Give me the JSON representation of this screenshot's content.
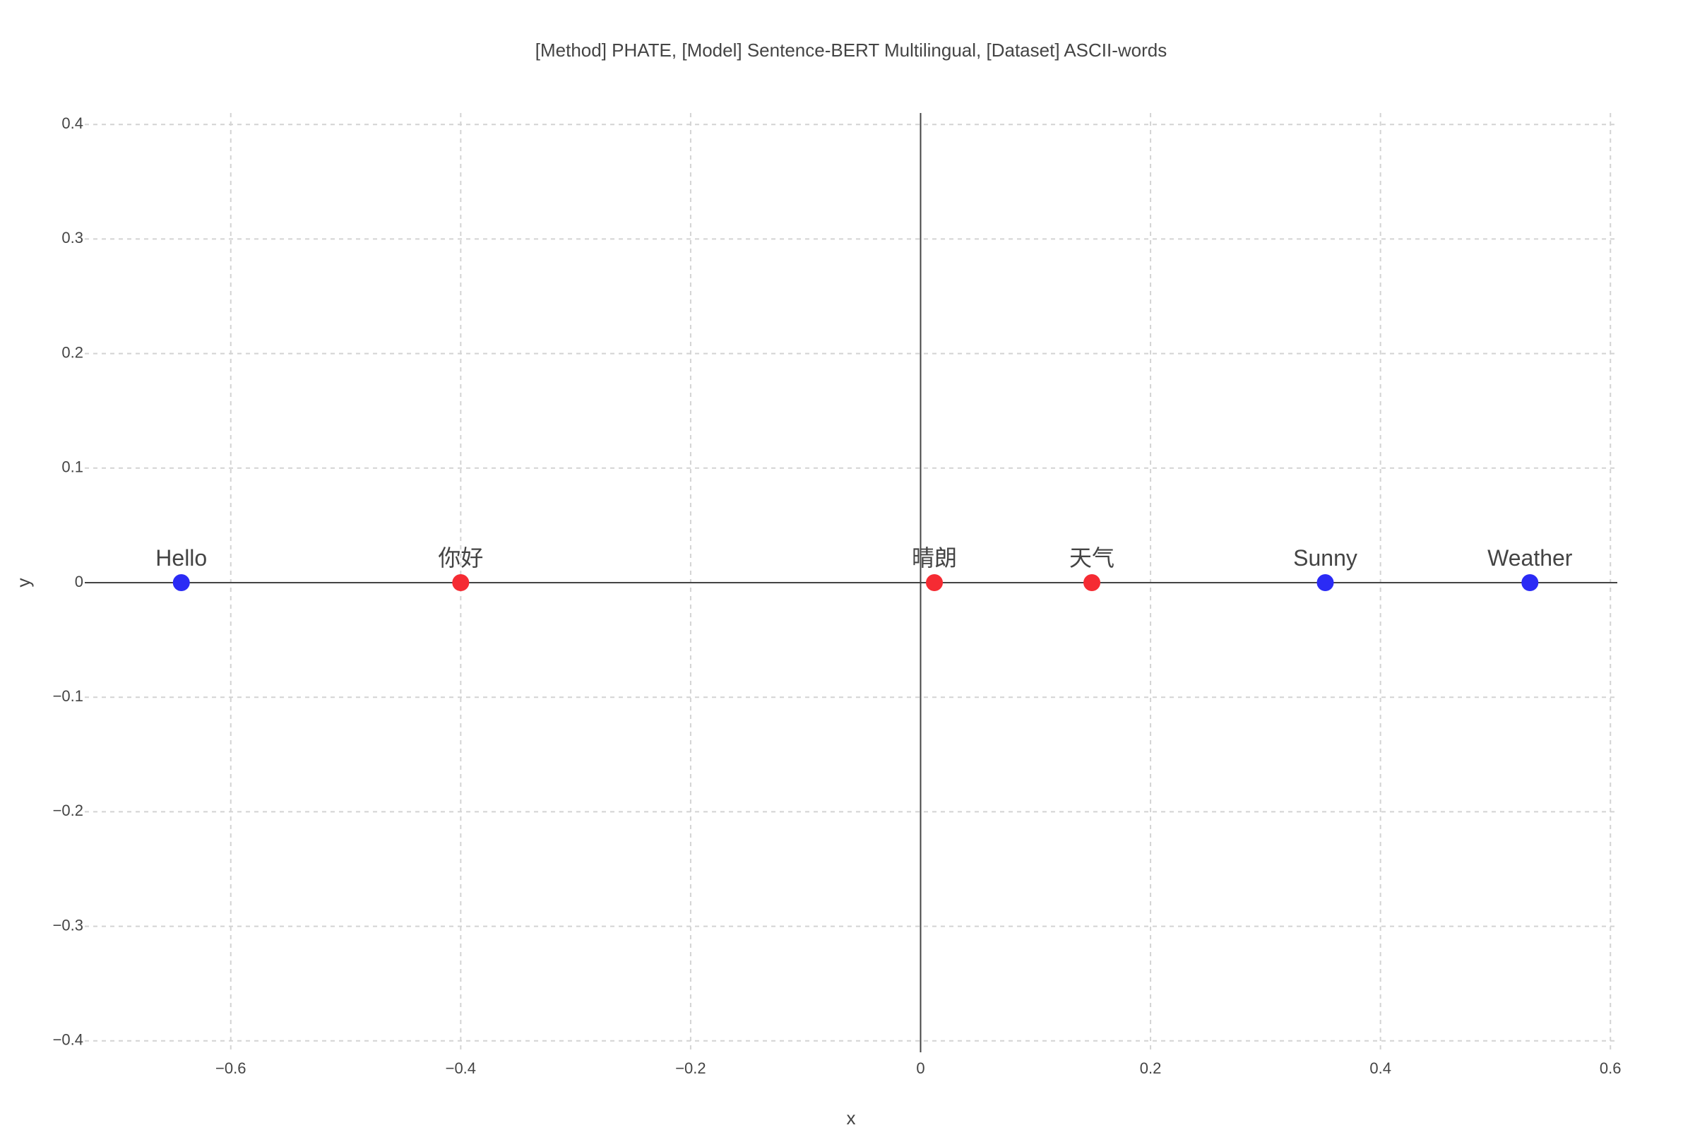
{
  "chart_data": {
    "type": "scatter",
    "title": "[Method] PHATE, [Model] Sentence-BERT Multilingual, [Dataset] ASCII-words",
    "xlabel": "x",
    "ylabel": "y",
    "xlim": [
      -0.727,
      0.606
    ],
    "ylim": [
      -0.41,
      0.41
    ],
    "x_ticks": [
      -0.6,
      -0.4,
      -0.2,
      0,
      0.2,
      0.4,
      0.6
    ],
    "x_tick_labels": [
      "−0.6",
      "−0.4",
      "−0.2",
      "0",
      "0.2",
      "0.4",
      "0.6"
    ],
    "y_ticks": [
      0.4,
      0.3,
      0.2,
      0.1,
      0,
      -0.1,
      -0.2,
      -0.3,
      -0.4
    ],
    "y_tick_labels": [
      "0.4",
      "0.3",
      "0.2",
      "0.1",
      "0",
      "−0.1",
      "−0.2",
      "−0.3",
      "−0.4"
    ],
    "grid": true,
    "points": [
      {
        "label": "Hello",
        "x": -0.643,
        "y": 0,
        "color": "#2b2bf5"
      },
      {
        "label": "你好",
        "x": -0.4,
        "y": 0,
        "color": "#f52b33"
      },
      {
        "label": "晴朗",
        "x": 0.012,
        "y": 0,
        "color": "#f52b33"
      },
      {
        "label": "天气",
        "x": 0.149,
        "y": 0,
        "color": "#f52b33"
      },
      {
        "label": "Sunny",
        "x": 0.352,
        "y": 0,
        "color": "#2b2bf5"
      },
      {
        "label": "Weather",
        "x": 0.53,
        "y": 0,
        "color": "#2b2bf5"
      }
    ]
  }
}
